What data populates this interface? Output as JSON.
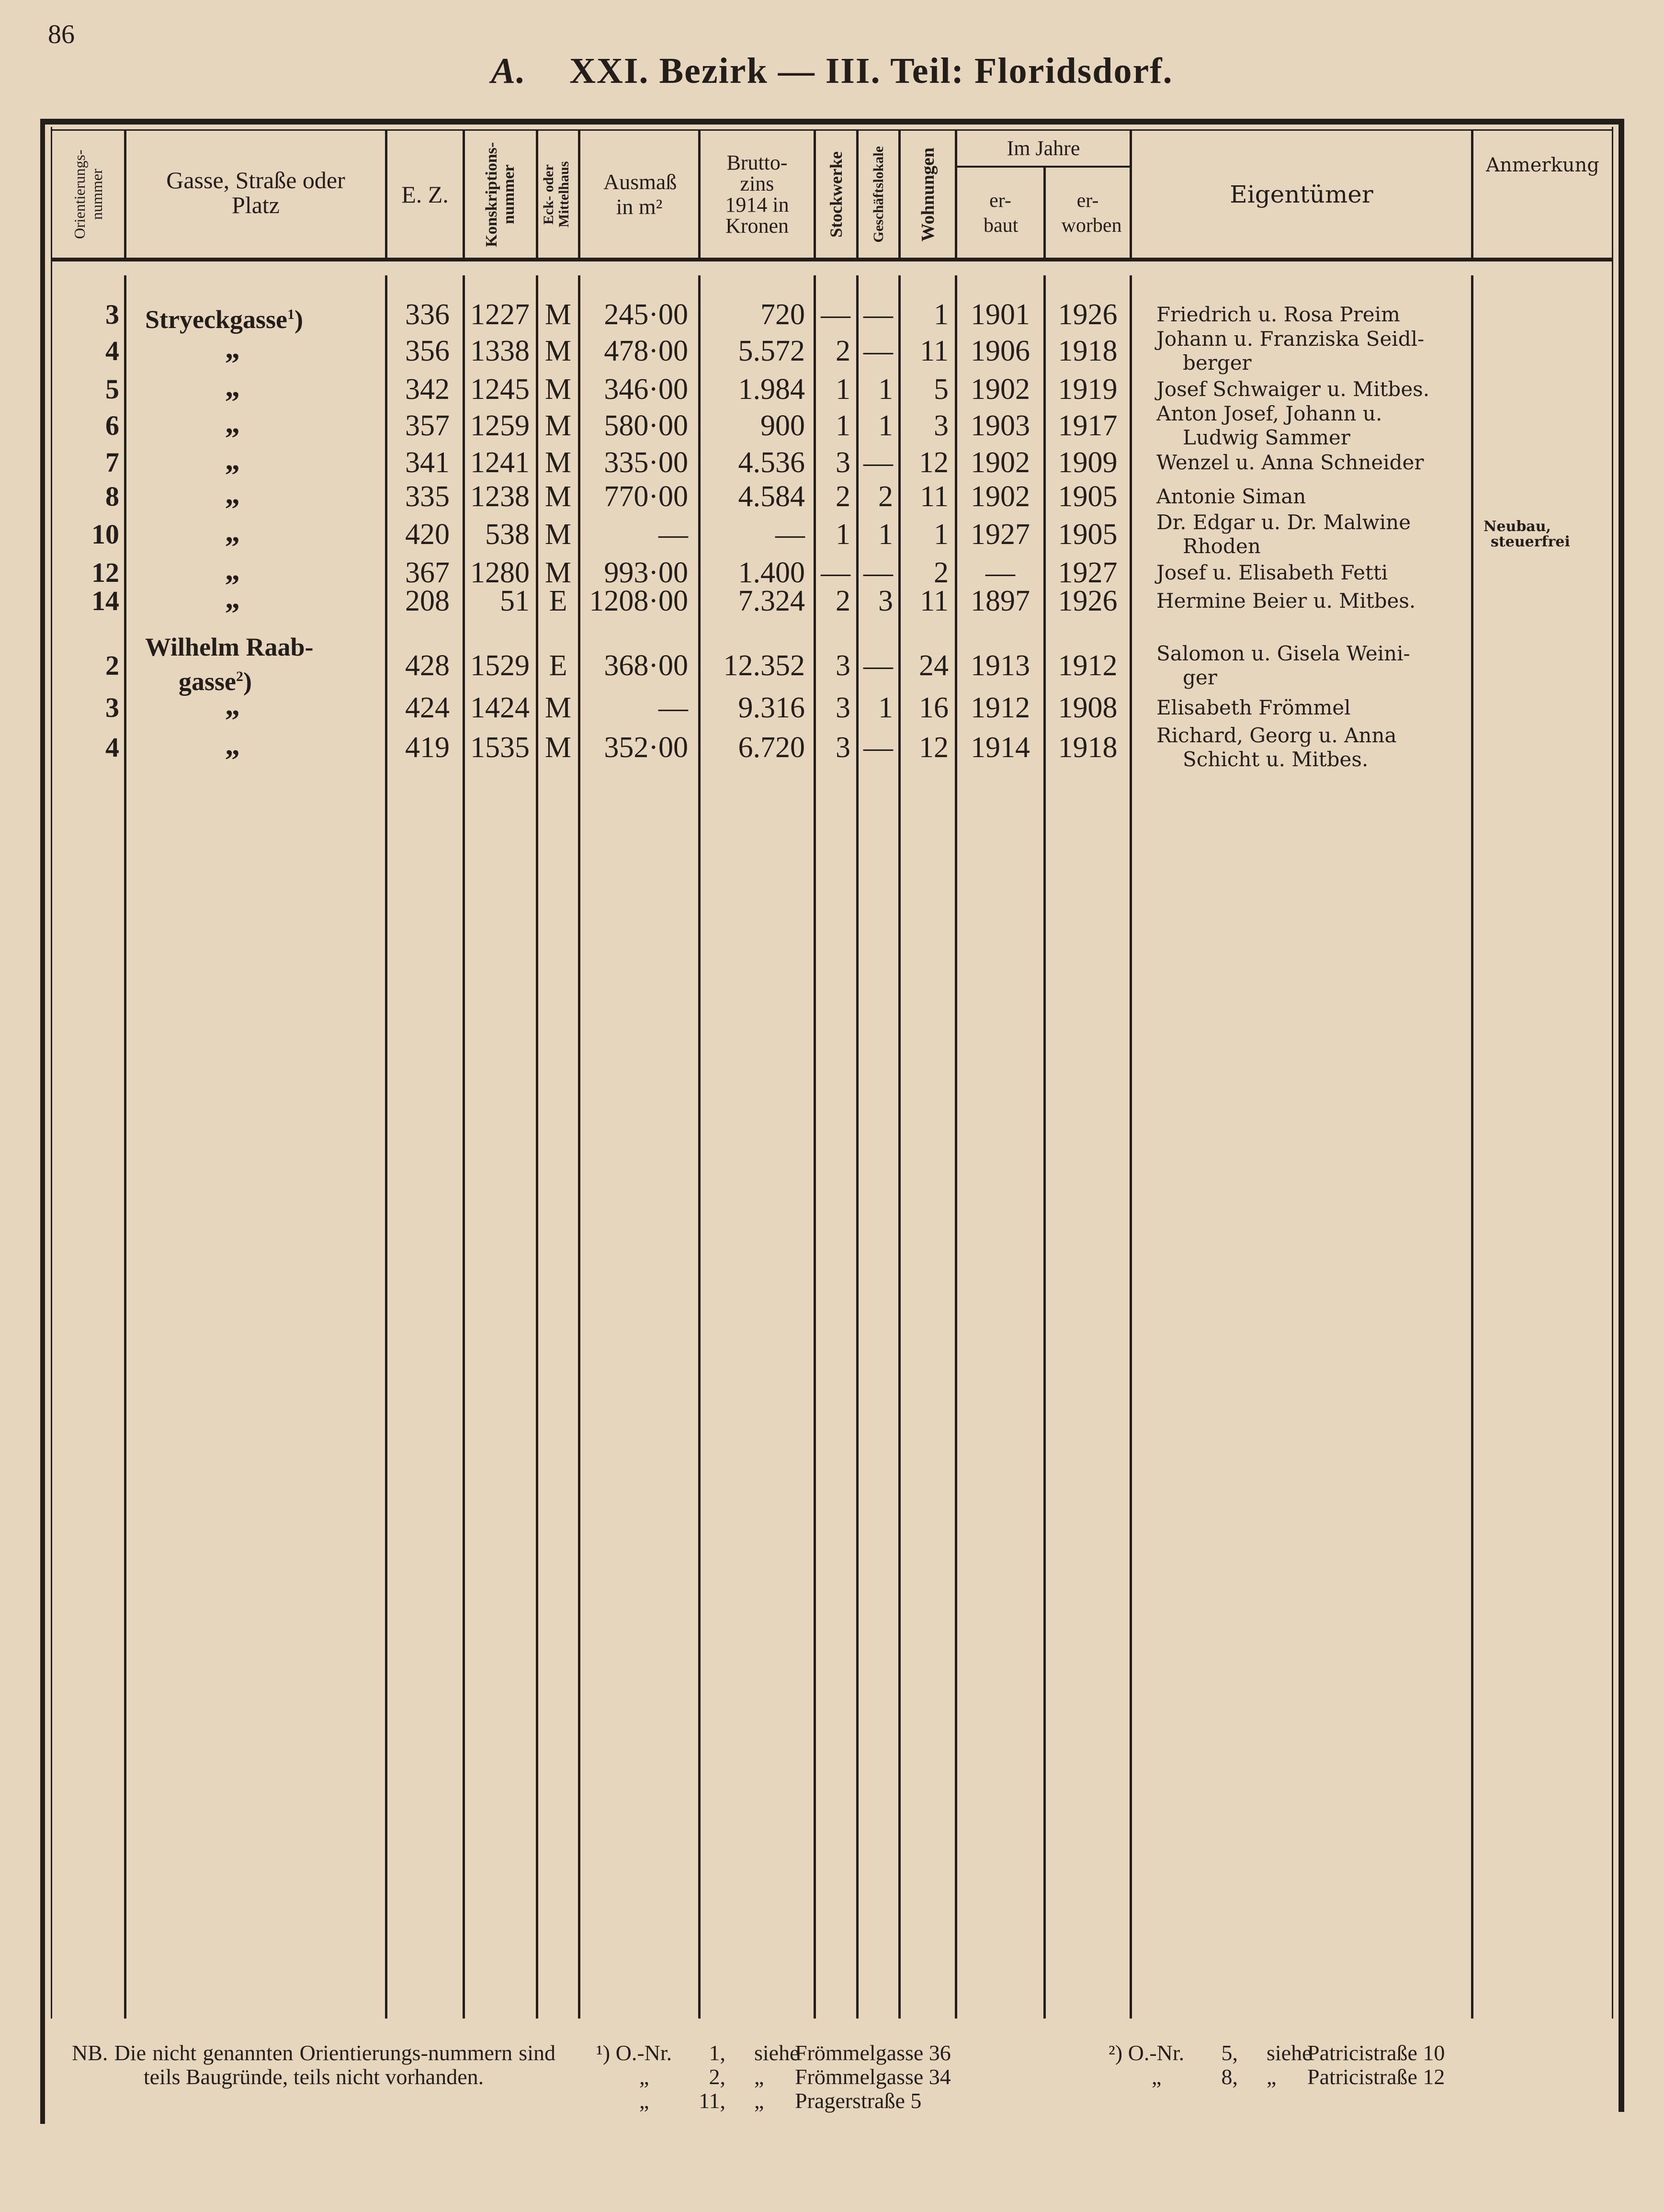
{
  "page_number": "86",
  "title": {
    "letter": "A.",
    "text": "XXI. Bezirk — III. Teil: Floridsdorf."
  },
  "headers": {
    "orient": "Orientierungs-nummer",
    "street": "Gasse, Straße oder Platz",
    "ez": "E. Z.",
    "konskr": "Konskriptions-nummer",
    "em": "Eck- oder Mittelhaus",
    "ausmass": "Ausmaß in m²",
    "zins": "Brutto-zins 1914 in Kronen",
    "stock": "Stockwerke",
    "gesch": "Geschäftslokale",
    "wohn": "Wohnungen",
    "jahre": "Im Jahre",
    "erbaut": "er-baut",
    "erworben": "er-worben",
    "owner": "Eigentümer",
    "anm": "Anmerkung"
  },
  "rows": [
    {
      "nr": "3",
      "street": [
        "Stryeckgasse"
      ],
      "fn": "1",
      "ez": "336",
      "konskr": "1227",
      "em": "M",
      "ausmass": "245·00",
      "zins": "720",
      "stock": "—",
      "gesch": "—",
      "wohn": "1",
      "erbaut": "1901",
      "erworben": "1926",
      "owner": [
        "Friedrich u. Rosa Preim"
      ],
      "anm": []
    },
    {
      "nr": "4",
      "ditto": "„",
      "ez": "356",
      "konskr": "1338",
      "em": "M",
      "ausmass": "478·00",
      "zins": "5.572",
      "stock": "2",
      "gesch": "—",
      "wohn": "11",
      "erbaut": "1906",
      "erworben": "1918",
      "owner": [
        "Johann u. Franziska Seidl-",
        "berger"
      ],
      "anm": []
    },
    {
      "nr": "5",
      "ditto": "„",
      "ez": "342",
      "konskr": "1245",
      "em": "M",
      "ausmass": "346·00",
      "zins": "1.984",
      "stock": "1",
      "gesch": "1",
      "wohn": "5",
      "erbaut": "1902",
      "erworben": "1919",
      "owner": [
        "Josef Schwaiger u. Mitbes."
      ],
      "anm": []
    },
    {
      "nr": "6",
      "ditto": "„",
      "ez": "357",
      "konskr": "1259",
      "em": "M",
      "ausmass": "580·00",
      "zins": "900",
      "stock": "1",
      "gesch": "1",
      "wohn": "3",
      "erbaut": "1903",
      "erworben": "1917",
      "owner": [
        "Anton Josef, Johann u.",
        "Ludwig Sammer"
      ],
      "anm": []
    },
    {
      "nr": "7",
      "ditto": "„",
      "ez": "341",
      "konskr": "1241",
      "em": "M",
      "ausmass": "335·00",
      "zins": "4.536",
      "stock": "3",
      "gesch": "—",
      "wohn": "12",
      "erbaut": "1902",
      "erworben": "1909",
      "owner": [
        "Wenzel u. Anna Schneider"
      ],
      "anm": []
    },
    {
      "nr": "8",
      "ditto": "„",
      "ez": "335",
      "konskr": "1238",
      "em": "M",
      "ausmass": "770·00",
      "zins": "4.584",
      "stock": "2",
      "gesch": "2",
      "wohn": "11",
      "erbaut": "1902",
      "erworben": "1905",
      "owner": [
        "Antonie Siman"
      ],
      "anm": []
    },
    {
      "nr": "10",
      "ditto": "„",
      "ez": "420",
      "konskr": "538",
      "em": "M",
      "ausmass": "—",
      "zins": "—",
      "stock": "1",
      "gesch": "1",
      "wohn": "1",
      "erbaut": "1927",
      "erworben": "1905",
      "owner": [
        "Dr. Edgar u. Dr. Malwine",
        "Rhoden"
      ],
      "anm": [
        "Neubau,",
        "steuerfrei"
      ]
    },
    {
      "nr": "12",
      "ditto": "„",
      "ez": "367",
      "konskr": "1280",
      "em": "M",
      "ausmass": "993·00",
      "zins": "1.400",
      "stock": "—",
      "gesch": "—",
      "wohn": "2",
      "erbaut": "—",
      "erworben": "1927",
      "owner": [
        "Josef u. Elisabeth Fetti"
      ],
      "anm": []
    },
    {
      "nr": "14",
      "ditto": "„",
      "ez": "208",
      "konskr": "51",
      "em": "E",
      "ausmass": "1208·00",
      "zins": "7.324",
      "stock": "2",
      "gesch": "3",
      "wohn": "11",
      "erbaut": "1897",
      "erworben": "1926",
      "owner": [
        "Hermine Beier u. Mitbes."
      ],
      "anm": []
    },
    {
      "nr": "2",
      "street": [
        "Wilhelm Raab-",
        "gasse"
      ],
      "fn": "2",
      "ez": "428",
      "konskr": "1529",
      "em": "E",
      "ausmass": "368·00",
      "zins": "12.352",
      "stock": "3",
      "gesch": "—",
      "wohn": "24",
      "erbaut": "1913",
      "erworben": "1912",
      "owner": [
        "Salomon u. Gisela Weini-",
        "ger"
      ],
      "anm": []
    },
    {
      "nr": "3",
      "ditto": "„",
      "ez": "424",
      "konskr": "1424",
      "em": "M",
      "ausmass": "—",
      "zins": "9.316",
      "stock": "3",
      "gesch": "1",
      "wohn": "16",
      "erbaut": "1912",
      "erworben": "1908",
      "owner": [
        "Elisabeth Frömmel"
      ],
      "anm": []
    },
    {
      "nr": "4",
      "ditto": "„",
      "ez": "419",
      "konskr": "1535",
      "em": "M",
      "ausmass": "352·00",
      "zins": "6.720",
      "stock": "3",
      "gesch": "—",
      "wohn": "12",
      "erbaut": "1914",
      "erworben": "1918",
      "owner": [
        "Richard, Georg u. Anna",
        "Schicht u. Mitbes."
      ],
      "anm": []
    }
  ],
  "footer": {
    "nb": "NB. Die nicht genannten Orientierungs-nummern sind teils Baugründe, teils nicht vorhanden.",
    "fn1": [
      {
        "mark": "¹) O.-Nr.",
        "nr": "1,",
        "siehe": "siehe",
        "ref": "Frömmelgasse 36"
      },
      {
        "mark": "„",
        "nr": "2,",
        "siehe": "„",
        "ref": "Frömmelgasse 34"
      },
      {
        "mark": "„",
        "nr": "11,",
        "siehe": "„",
        "ref": "Pragerstraße 5"
      }
    ],
    "fn2": [
      {
        "mark": "²) O.-Nr.",
        "nr": "5,",
        "siehe": "siehe",
        "ref": "Patricistraße 10"
      },
      {
        "mark": "„",
        "nr": "8,",
        "siehe": "„",
        "ref": "Patricistraße 12"
      }
    ]
  }
}
